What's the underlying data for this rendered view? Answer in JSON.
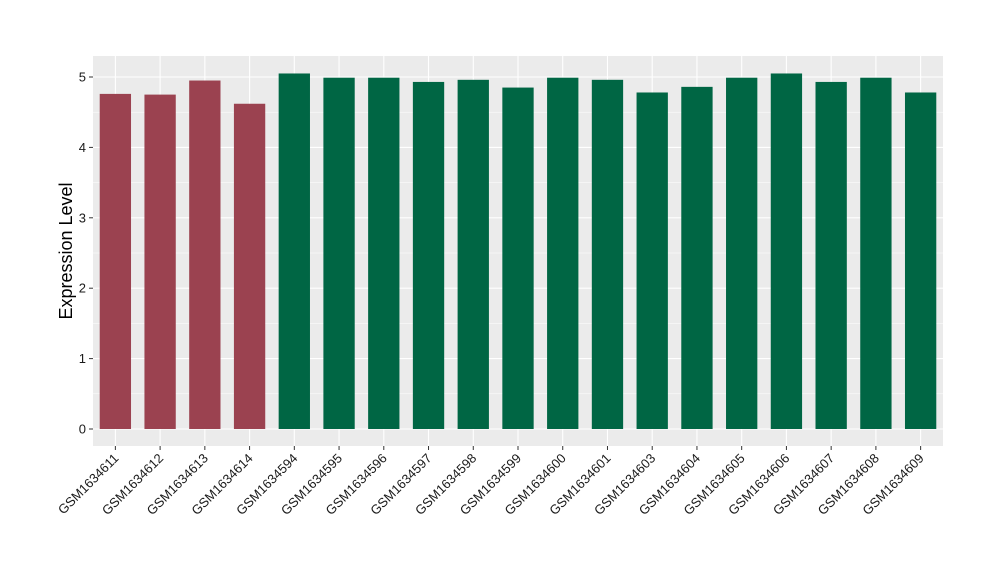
{
  "chart_data": {
    "type": "bar",
    "title": "",
    "xlabel": "",
    "ylabel": "Expression Level",
    "ylim": [
      0,
      5.3
    ],
    "yticks": [
      0,
      1,
      2,
      3,
      4,
      5
    ],
    "grid": true,
    "categories": [
      "GSM1634611",
      "GSM1634612",
      "GSM1634613",
      "GSM1634614",
      "GSM1634594",
      "GSM1634595",
      "GSM1634596",
      "GSM1634597",
      "GSM1634598",
      "GSM1634599",
      "GSM1634600",
      "GSM1634601",
      "GSM1634603",
      "GSM1634604",
      "GSM1634605",
      "GSM1634606",
      "GSM1634607",
      "GSM1634608",
      "GSM1634609"
    ],
    "values": [
      4.76,
      4.75,
      4.95,
      4.62,
      5.05,
      4.99,
      4.99,
      4.93,
      4.96,
      4.85,
      4.99,
      4.96,
      4.78,
      4.86,
      4.99,
      5.05,
      4.93,
      4.99,
      4.78
    ],
    "groups": [
      "a",
      "a",
      "a",
      "a",
      "b",
      "b",
      "b",
      "b",
      "b",
      "b",
      "b",
      "b",
      "b",
      "b",
      "b",
      "b",
      "b",
      "b",
      "b"
    ],
    "colors": {
      "a": "#9b4250",
      "b": "#006644"
    },
    "panel_background": "#ebebeb",
    "grid_color": "#ffffff"
  }
}
